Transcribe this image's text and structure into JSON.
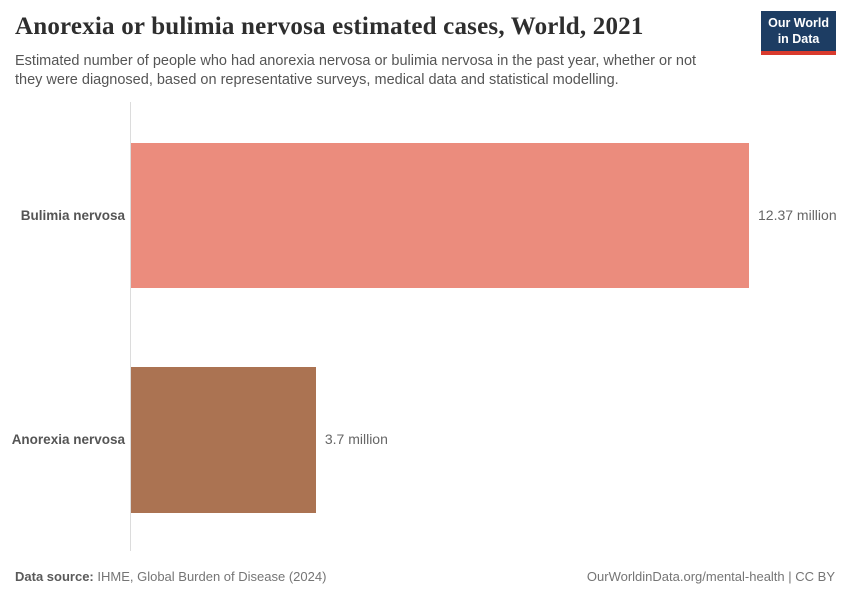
{
  "header": {
    "title": "Anorexia or bulimia nervosa estimated cases, World, 2021",
    "subtitle_line1": "Estimated number of people who had anorexia nervosa or bulimia nervosa in the past year, whether or not",
    "subtitle_line2": "they were diagnosed, based on representative surveys, medical data and statistical modelling.",
    "logo": {
      "line1": "Our World",
      "line2": "in Data",
      "bg_color": "#1d3d63",
      "accent_color": "#d93a2d"
    }
  },
  "chart_data": {
    "type": "bar",
    "orientation": "horizontal",
    "title": "Anorexia or bulimia nervosa estimated cases, World, 2021",
    "categories": [
      "Bulimia nervosa",
      "Anorexia nervosa"
    ],
    "values": [
      12.37,
      3.7
    ],
    "value_labels": [
      "12.37 million",
      "3.7 million"
    ],
    "bar_colors": [
      "#eb8c7d",
      "#ab7352"
    ],
    "unit": "million",
    "xlim": [
      0,
      12.37
    ],
    "grid": "off",
    "legend": "none",
    "axis_line_color": "#dcdcdc"
  },
  "footer": {
    "source_label": "Data source:",
    "source_text": " IHME, Global Burden of Disease (2024)",
    "link_text": "OurWorldinData.org/mental-health",
    "separator": " | ",
    "license_text": "CC BY"
  }
}
